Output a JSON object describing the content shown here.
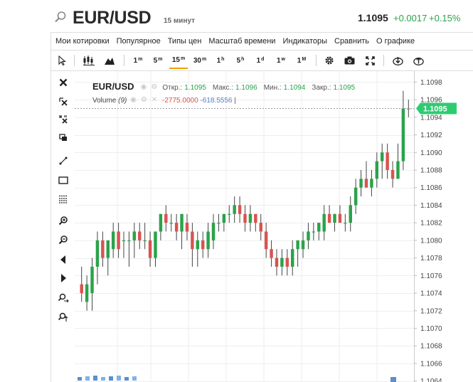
{
  "header": {
    "symbol": "EUR/USD",
    "interval": "15 минут",
    "price": "1.1095",
    "change": "+0.0017",
    "change_pct": "+0.15%"
  },
  "menu": {
    "items": [
      "Мои котировки",
      "Популярное",
      "Типы цен",
      "Масштаб времени",
      "Индикаторы",
      "Сравнить",
      "О графике"
    ]
  },
  "toolbar": {
    "chart_types": [
      "candles-icon",
      "mountain-icon"
    ],
    "timeframes": [
      {
        "num": "1",
        "unit": "m",
        "active": false
      },
      {
        "num": "5",
        "unit": "m",
        "active": false
      },
      {
        "num": "15",
        "unit": "m",
        "active": true
      },
      {
        "num": "30",
        "unit": "m",
        "active": false
      },
      {
        "num": "1",
        "unit": "h",
        "active": false
      },
      {
        "num": "5",
        "unit": "h",
        "active": false
      },
      {
        "num": "1",
        "unit": "d",
        "active": false
      },
      {
        "num": "1",
        "unit": "w",
        "active": false
      },
      {
        "num": "1",
        "unit": "M",
        "active": false
      }
    ],
    "tools": [
      "gear-icon",
      "camera-icon",
      "fullscreen-icon",
      "download-icon",
      "upload-icon"
    ]
  },
  "left_tools": [
    "close-icon",
    "erase-icon",
    "magnet-icon",
    "duplicate-icon",
    "trendline-icon",
    "rectangle-icon",
    "fibonacci-icon",
    "zoom-in-icon",
    "zoom-out-icon",
    "scroll-left-icon",
    "scroll-right-icon",
    "zoom-x-icon",
    "zoom-y-icon"
  ],
  "legend": {
    "symbol": "EUR/USD",
    "open_label": "Откр.:",
    "open": "1.1095",
    "high_label": "Макс.:",
    "high": "1.1096",
    "low_label": "Мин.:",
    "low": "1.1094",
    "close_label": "Закр.:",
    "close": "1.1095"
  },
  "volume": {
    "label": "Volume",
    "param": "(9)",
    "value1": "-2775.0000",
    "value2": "-618.5556",
    "cursor": "|"
  },
  "colors": {
    "up": "#2aa34a",
    "down": "#d9534f",
    "accent": "#f0a000",
    "price_tag": "#2ecc71"
  },
  "chart_data": {
    "type": "candlestick",
    "ylim": [
      1.1063,
      1.1099
    ],
    "y_ticks": [
      "1.1098",
      "1.1096",
      "1.1094",
      "1.1092",
      "1.1090",
      "1.1088",
      "1.1086",
      "1.1084",
      "1.1082",
      "1.1080",
      "1.1078",
      "1.1076",
      "1.1074",
      "1.1072",
      "1.1070",
      "1.1068",
      "1.1066",
      "1.1064"
    ],
    "last_price": "1.1095",
    "candles": [
      {
        "o": 1.1075,
        "h": 1.1077,
        "l": 1.1073,
        "c": 1.1074
      },
      {
        "o": 1.1073,
        "h": 1.1076,
        "l": 1.1072,
        "c": 1.1075
      },
      {
        "o": 1.1074,
        "h": 1.1078,
        "l": 1.1072,
        "c": 1.1077
      },
      {
        "o": 1.1077,
        "h": 1.1081,
        "l": 1.1075,
        "c": 1.108
      },
      {
        "o": 1.108,
        "h": 1.1081,
        "l": 1.1077,
        "c": 1.1078
      },
      {
        "o": 1.1078,
        "h": 1.108,
        "l": 1.1076,
        "c": 1.108
      },
      {
        "o": 1.1079,
        "h": 1.1082,
        "l": 1.1078,
        "c": 1.1081
      },
      {
        "o": 1.1081,
        "h": 1.1082,
        "l": 1.1078,
        "c": 1.1079
      },
      {
        "o": 1.108,
        "h": 1.1081,
        "l": 1.1078,
        "c": 1.108
      },
      {
        "o": 1.108,
        "h": 1.1081,
        "l": 1.1077,
        "c": 1.108
      },
      {
        "o": 1.108,
        "h": 1.1082,
        "l": 1.1078,
        "c": 1.1081
      },
      {
        "o": 1.1081,
        "h": 1.1082,
        "l": 1.1079,
        "c": 1.108
      },
      {
        "o": 1.108,
        "h": 1.1082,
        "l": 1.1079,
        "c": 1.108
      },
      {
        "o": 1.108,
        "h": 1.1081,
        "l": 1.1077,
        "c": 1.1078
      },
      {
        "o": 1.1078,
        "h": 1.1081,
        "l": 1.1077,
        "c": 1.1081
      },
      {
        "o": 1.1081,
        "h": 1.1083,
        "l": 1.108,
        "c": 1.1083
      },
      {
        "o": 1.1083,
        "h": 1.1084,
        "l": 1.1081,
        "c": 1.1082
      },
      {
        "o": 1.1082,
        "h": 1.1083,
        "l": 1.1081,
        "c": 1.1082
      },
      {
        "o": 1.1082,
        "h": 1.1083,
        "l": 1.108,
        "c": 1.1081
      },
      {
        "o": 1.1081,
        "h": 1.1083,
        "l": 1.1079,
        "c": 1.1083
      },
      {
        "o": 1.1082,
        "h": 1.1083,
        "l": 1.108,
        "c": 1.1081
      },
      {
        "o": 1.1081,
        "h": 1.1082,
        "l": 1.1077,
        "c": 1.1079
      },
      {
        "o": 1.1079,
        "h": 1.1081,
        "l": 1.1077,
        "c": 1.108
      },
      {
        "o": 1.108,
        "h": 1.1081,
        "l": 1.1078,
        "c": 1.1079
      },
      {
        "o": 1.1079,
        "h": 1.1082,
        "l": 1.1078,
        "c": 1.1081
      },
      {
        "o": 1.108,
        "h": 1.1083,
        "l": 1.1079,
        "c": 1.1082
      },
      {
        "o": 1.1082,
        "h": 1.1083,
        "l": 1.1081,
        "c": 1.1082
      },
      {
        "o": 1.1082,
        "h": 1.1083,
        "l": 1.1081,
        "c": 1.1083
      },
      {
        "o": 1.1083,
        "h": 1.1084,
        "l": 1.1082,
        "c": 1.1083
      },
      {
        "o": 1.1083,
        "h": 1.1085,
        "l": 1.1082,
        "c": 1.1084
      },
      {
        "o": 1.1084,
        "h": 1.1085,
        "l": 1.1082,
        "c": 1.1083
      },
      {
        "o": 1.1083,
        "h": 1.1084,
        "l": 1.1081,
        "c": 1.1082
      },
      {
        "o": 1.1082,
        "h": 1.1084,
        "l": 1.1081,
        "c": 1.1083
      },
      {
        "o": 1.1083,
        "h": 1.1083,
        "l": 1.1081,
        "c": 1.1082
      },
      {
        "o": 1.1082,
        "h": 1.1083,
        "l": 1.108,
        "c": 1.1081
      },
      {
        "o": 1.1081,
        "h": 1.1082,
        "l": 1.1078,
        "c": 1.1079
      },
      {
        "o": 1.1079,
        "h": 1.108,
        "l": 1.1077,
        "c": 1.1078
      },
      {
        "o": 1.1078,
        "h": 1.1079,
        "l": 1.1076,
        "c": 1.1077
      },
      {
        "o": 1.1077,
        "h": 1.1079,
        "l": 1.1076,
        "c": 1.1078
      },
      {
        "o": 1.1078,
        "h": 1.1079,
        "l": 1.1076,
        "c": 1.1077
      },
      {
        "o": 1.1077,
        "h": 1.108,
        "l": 1.1076,
        "c": 1.1079
      },
      {
        "o": 1.1079,
        "h": 1.108,
        "l": 1.1077,
        "c": 1.108
      },
      {
        "o": 1.1079,
        "h": 1.1081,
        "l": 1.1078,
        "c": 1.108
      },
      {
        "o": 1.108,
        "h": 1.1082,
        "l": 1.1079,
        "c": 1.1081
      },
      {
        "o": 1.1081,
        "h": 1.1082,
        "l": 1.108,
        "c": 1.1081
      },
      {
        "o": 1.1081,
        "h": 1.1082,
        "l": 1.108,
        "c": 1.1082
      },
      {
        "o": 1.1081,
        "h": 1.1084,
        "l": 1.108,
        "c": 1.1083
      },
      {
        "o": 1.1083,
        "h": 1.1084,
        "l": 1.1082,
        "c": 1.1082
      },
      {
        "o": 1.1082,
        "h": 1.1083,
        "l": 1.1081,
        "c": 1.1083
      },
      {
        "o": 1.1083,
        "h": 1.1084,
        "l": 1.1082,
        "c": 1.1082
      },
      {
        "o": 1.1082,
        "h": 1.1083,
        "l": 1.1081,
        "c": 1.1082
      },
      {
        "o": 1.1082,
        "h": 1.1085,
        "l": 1.1081,
        "c": 1.1084
      },
      {
        "o": 1.1084,
        "h": 1.1087,
        "l": 1.1083,
        "c": 1.1086
      },
      {
        "o": 1.1086,
        "h": 1.1088,
        "l": 1.1085,
        "c": 1.1087
      },
      {
        "o": 1.1087,
        "h": 1.1089,
        "l": 1.1086,
        "c": 1.1086
      },
      {
        "o": 1.1086,
        "h": 1.1088,
        "l": 1.1085,
        "c": 1.1087
      },
      {
        "o": 1.1087,
        "h": 1.109,
        "l": 1.1086,
        "c": 1.1089
      },
      {
        "o": 1.1089,
        "h": 1.1091,
        "l": 1.1087,
        "c": 1.109
      },
      {
        "o": 1.109,
        "h": 1.1091,
        "l": 1.1087,
        "c": 1.1088
      },
      {
        "o": 1.1088,
        "h": 1.1089,
        "l": 1.1086,
        "c": 1.1087
      },
      {
        "o": 1.1087,
        "h": 1.1091,
        "l": 1.1087,
        "c": 1.1089
      },
      {
        "o": 1.1089,
        "h": 1.1097,
        "l": 1.1088,
        "c": 1.1095
      },
      {
        "o": 1.1095,
        "h": 1.1096,
        "l": 1.1094,
        "c": 1.1095
      }
    ]
  }
}
